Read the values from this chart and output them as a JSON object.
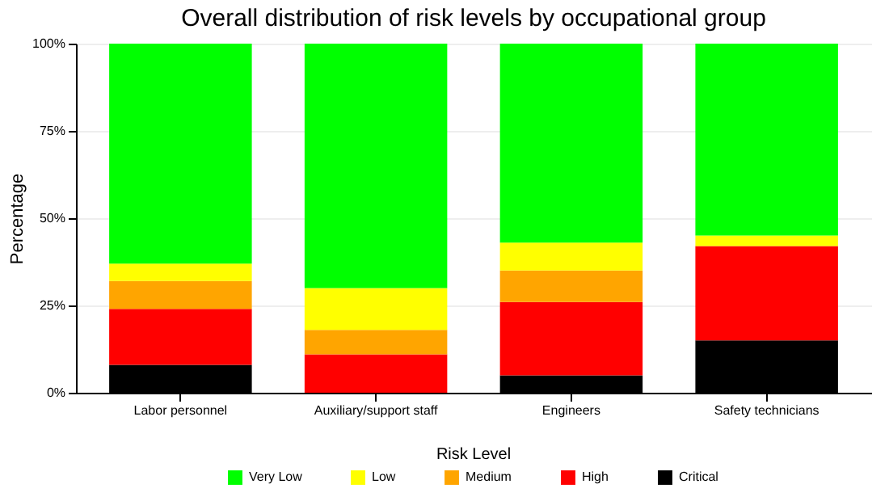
{
  "chart_data": {
    "type": "bar",
    "title": "Overall distribution of risk levels by occupational group",
    "ylabel": "Percentage",
    "legend_title": "Risk Level",
    "categories": [
      "Labor personnel",
      "Auxiliary/support staff",
      "Engineers",
      "Safety technicians"
    ],
    "stacked": true,
    "series": [
      {
        "name": "Critical",
        "color": "#000000",
        "values": [
          8,
          0,
          5,
          15
        ]
      },
      {
        "name": "High",
        "color": "#ff0000",
        "values": [
          16,
          11,
          21,
          27
        ]
      },
      {
        "name": "Medium",
        "color": "#ffa500",
        "values": [
          8,
          7,
          9,
          0
        ]
      },
      {
        "name": "Low",
        "color": "#ffff00",
        "values": [
          5,
          12,
          8,
          3
        ]
      },
      {
        "name": "Very Low",
        "color": "#00ff00",
        "values": [
          63,
          70,
          57,
          55
        ]
      }
    ],
    "ylim": [
      0,
      100
    ],
    "yticks": [
      {
        "value": 0,
        "label": "0%"
      },
      {
        "value": 25,
        "label": "25%"
      },
      {
        "value": 50,
        "label": "50%"
      },
      {
        "value": 75,
        "label": "75%"
      },
      {
        "value": 100,
        "label": "100%"
      }
    ],
    "grid": "y",
    "legend": "bottom"
  }
}
